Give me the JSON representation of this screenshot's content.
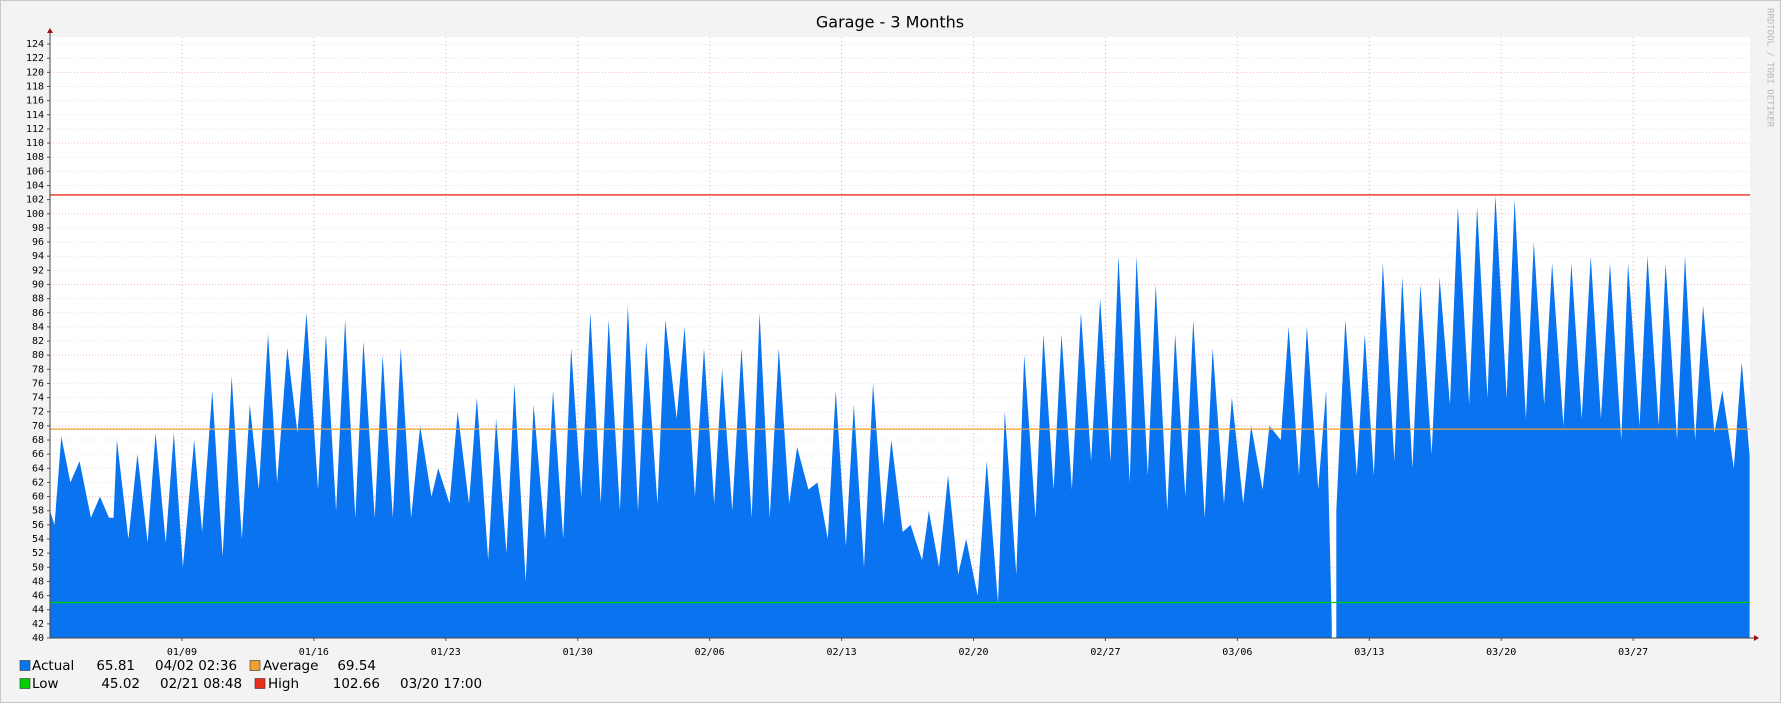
{
  "chart_data": {
    "type": "area",
    "title": "Garage - 3 Months",
    "watermark": "RRDTOOL / TOBI OETIKER",
    "x": [
      0,
      0.24,
      0.6,
      1.08,
      1.57,
      2.17,
      2.65,
      3.13,
      3.37,
      3.55,
      4.16,
      4.64,
      5.18,
      5.6,
      6.14,
      6.57,
      7.05,
      7.65,
      8.07,
      8.61,
      9.16,
      9.64,
      10.18,
      10.6,
      11.08,
      11.57,
      12.05,
      12.59,
      13.13,
      13.61,
      14.22,
      14.64,
      15.18,
      15.66,
      16.2,
      16.63,
      17.23,
      17.65,
      18.19,
      18.61,
      19.16,
      19.64,
      20.24,
      20.6,
      21.2,
      21.63,
      22.23,
      22.65,
      23.25,
      23.67,
      24.22,
      24.64,
      25.24,
      25.66,
      26.27,
      26.69,
      27.23,
      27.65,
      28.19,
      28.67,
      29.22,
      29.64,
      30.24,
      30.66,
      31.2,
      31.63,
      32.23,
      32.65,
      33.25,
      33.67,
      34.22,
      34.7,
      35.24,
      35.66,
      36.2,
      36.69,
      37.23,
      37.65,
      38.19,
      38.67,
      39.22,
      39.64,
      40.24,
      40.72,
      41.27,
      41.69,
      42.23,
      42.65,
      43.19,
      43.67,
      44.22,
      44.64,
      45.24,
      45.66,
      46.27,
      46.63,
      47.17,
      47.65,
      48.19,
      48.61,
      49.22,
      49.7,
      50.3,
      50.66,
      51.27,
      51.69,
      52.29,
      52.71,
      53.25,
      53.67,
      54.22,
      54.7,
      55.24,
      55.72,
      56.27,
      56.69,
      57.29,
      57.65,
      58.25,
      58.67,
      59.28,
      59.7,
      60.24,
      60.66,
      61.27,
      61.69,
      62.29,
      62.71,
      63.31,
      63.73,
      64.34,
      64.7,
      65.3,
      65.72,
      66.27,
      66.69,
      67.29,
      67.71,
      68.01,
      68.12,
      68.25,
      68.73,
      69.34,
      69.76,
      70.24,
      70.72,
      71.33,
      71.75,
      72.29,
      72.71,
      73.31,
      73.73,
      74.28,
      74.7,
      75.3,
      75.72,
      76.27,
      76.69,
      77.29,
      77.71,
      78.31,
      78.73,
      79.28,
      79.7,
      80.3,
      80.72,
      81.27,
      81.75,
      82.29,
      82.77,
      83.37,
      83.73,
      84.34,
      84.76,
      85.36,
      85.72,
      86.33,
      86.75,
      87.29,
      87.71,
      88.31,
      88.73,
      89.34,
      89.76,
      90.18
    ],
    "series": [
      {
        "name": "Actual",
        "color": "#0a74f0",
        "value": 65.81,
        "time": "04/02 02:36",
        "values": [
          58,
          56,
          68.5,
          62,
          65,
          57,
          60,
          57,
          57,
          68,
          54,
          66,
          53.5,
          69,
          53.5,
          69,
          50,
          68,
          55,
          75,
          51.5,
          77,
          54,
          73,
          61,
          83,
          62,
          81,
          69,
          86,
          61,
          83,
          58,
          85,
          57,
          82,
          57,
          80,
          57,
          81,
          57,
          70,
          60,
          64,
          59,
          72,
          59,
          74,
          51,
          71,
          52,
          76,
          48,
          73,
          54,
          75,
          54,
          81,
          60,
          86,
          59,
          85,
          58,
          87,
          58,
          82,
          59,
          85,
          71,
          84,
          60,
          81,
          59,
          78,
          58,
          81,
          57,
          86,
          57,
          81,
          59,
          67,
          61,
          62,
          54,
          75,
          53,
          73,
          50,
          76,
          56,
          68,
          55,
          56,
          51,
          58,
          50,
          63,
          49,
          54,
          46,
          65,
          45,
          72,
          49,
          80,
          57,
          83,
          61,
          83,
          61,
          86,
          65,
          88,
          65,
          94,
          62,
          94,
          63,
          90,
          58,
          83,
          60,
          85,
          57,
          81,
          59,
          74,
          59,
          70,
          61,
          70,
          68,
          84,
          63,
          84,
          61,
          75,
          42,
          null,
          58,
          85,
          63,
          83,
          63,
          93,
          65,
          91,
          64,
          90,
          66,
          91,
          73,
          101,
          73,
          101,
          74,
          102.6,
          74,
          102,
          71,
          96,
          73,
          93,
          70,
          93,
          71,
          94,
          71,
          93,
          68,
          93,
          70,
          94,
          70,
          93,
          68,
          94,
          68,
          87,
          69,
          75,
          64,
          79,
          65.8
        ]
      }
    ],
    "rules": [
      {
        "name": "Average",
        "color": "#f0a030",
        "value": 69.54
      },
      {
        "name": "Low",
        "color": "#00d000",
        "value": 45.02,
        "time": "02/21 08:48"
      },
      {
        "name": "High",
        "color": "#e8301c",
        "value": 102.66,
        "time": "03/20 17:00"
      }
    ],
    "xlim": [
      0,
      90.2
    ],
    "xticks": [
      {
        "value": 7,
        "label": "01/09"
      },
      {
        "value": 14,
        "label": "01/16"
      },
      {
        "value": 21,
        "label": "01/23"
      },
      {
        "value": 28,
        "label": "01/30"
      },
      {
        "value": 35,
        "label": "02/06"
      },
      {
        "value": 42,
        "label": "02/13"
      },
      {
        "value": 49,
        "label": "02/20"
      },
      {
        "value": 56,
        "label": "02/27"
      },
      {
        "value": 63,
        "label": "03/06"
      },
      {
        "value": 70,
        "label": "03/13"
      },
      {
        "value": 77,
        "label": "03/20"
      },
      {
        "value": 84,
        "label": "03/27"
      }
    ],
    "ylim": [
      40,
      125
    ],
    "yticks": [
      40,
      42,
      44,
      46,
      48,
      50,
      52,
      54,
      56,
      58,
      60,
      62,
      64,
      66,
      68,
      70,
      72,
      74,
      76,
      78,
      80,
      82,
      84,
      86,
      88,
      90,
      92,
      94,
      96,
      98,
      100,
      102,
      104,
      106,
      108,
      110,
      112,
      114,
      116,
      118,
      120,
      122,
      124
    ],
    "grid": true
  }
}
